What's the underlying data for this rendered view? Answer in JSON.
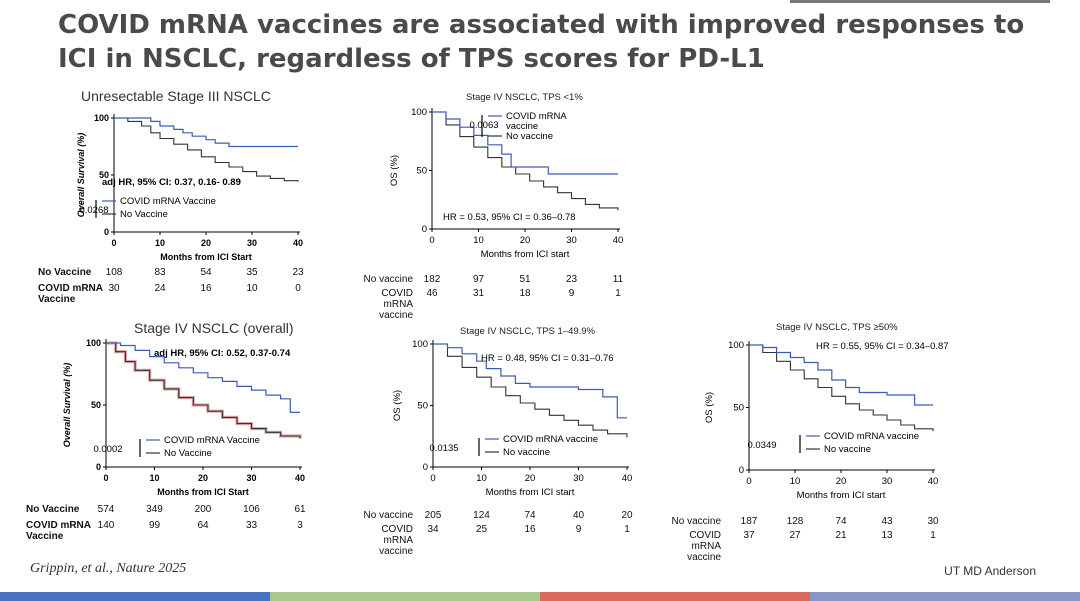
{
  "slide": {
    "title": "COVID mRNA vaccines are associated with improved responses to ICI in NSCLC, regardless of TPS scores for PD-L1",
    "citation": "Grippin, et al., Nature 2025",
    "organization": "UT MD Anderson"
  },
  "colors": {
    "vaccine": "#3b5bb8",
    "no_vaccine": "#333333",
    "ci_band": "#c86060",
    "bar": [
      "#4a72c2",
      "#a8c890",
      "#d96a5a",
      "#8a96c8"
    ]
  },
  "chart_data": [
    {
      "type": "line",
      "title": "Unresectable Stage III NSCLC",
      "xlabel": "Months from ICI Start",
      "ylabel": "Overall Survival (%)",
      "xlim": [
        0,
        40
      ],
      "ylim": [
        0,
        100
      ],
      "xticks": [
        0,
        10,
        20,
        30,
        40
      ],
      "yticks": [
        0,
        50,
        100
      ],
      "annotation": "adj HR, 95% CI: 0.37, 0.16- 0.89",
      "p_value": "0.0268",
      "series": [
        {
          "name": "COVID mRNA Vaccine",
          "x": [
            0,
            5,
            8,
            10,
            13,
            15,
            17,
            20,
            22,
            25,
            28,
            30,
            35,
            38,
            40
          ],
          "y": [
            100,
            100,
            97,
            93,
            90,
            87,
            84,
            81,
            78,
            75,
            75,
            75,
            75,
            75,
            75
          ]
        },
        {
          "name": "No Vaccine",
          "x": [
            0,
            3,
            6,
            8,
            10,
            13,
            16,
            19,
            22,
            25,
            28,
            31,
            34,
            37,
            40
          ],
          "y": [
            100,
            97,
            93,
            87,
            82,
            77,
            72,
            66,
            61,
            57,
            53,
            49,
            47,
            45,
            44
          ]
        }
      ],
      "risk_table": {
        "x": [
          0,
          10,
          20,
          30,
          40
        ],
        "rows": [
          {
            "label": "No Vaccine",
            "values": [
              "108",
              "83",
              "54",
              "35",
              "23"
            ]
          },
          {
            "label": "COVID mRNA Vaccine",
            "values": [
              "30",
              "24",
              "16",
              "10",
              "0"
            ]
          }
        ]
      }
    },
    {
      "type": "line",
      "title": "Stage IV NSCLC, TPS <1%",
      "xlabel": "Months from ICI start",
      "ylabel": "OS (%)",
      "xlim": [
        0,
        40
      ],
      "ylim": [
        0,
        100
      ],
      "xticks": [
        0,
        10,
        20,
        30,
        40
      ],
      "yticks": [
        0,
        50,
        100
      ],
      "annotation": "HR = 0.53, 95% CI = 0.36–0.78",
      "p_value": "0.0063",
      "series": [
        {
          "name": "COVID mRNA vaccine",
          "x": [
            0,
            3,
            6,
            9,
            12,
            15,
            17,
            20,
            25,
            30,
            35,
            40
          ],
          "y": [
            100,
            94,
            87,
            80,
            72,
            64,
            53,
            53,
            47,
            47,
            47,
            47
          ]
        },
        {
          "name": "No vaccine",
          "x": [
            0,
            3,
            6,
            9,
            12,
            15,
            18,
            21,
            24,
            27,
            30,
            33,
            36,
            40
          ],
          "y": [
            100,
            89,
            79,
            70,
            61,
            53,
            47,
            41,
            36,
            31,
            26,
            21,
            18,
            16
          ]
        }
      ],
      "risk_table": {
        "x": [
          0,
          10,
          20,
          30,
          40
        ],
        "rows": [
          {
            "label": "No vaccine",
            "values": [
              "182",
              "97",
              "51",
              "23",
              "11"
            ]
          },
          {
            "label": "COVID mRNA vaccine",
            "values": [
              "46",
              "31",
              "18",
              "9",
              "1"
            ]
          }
        ]
      }
    },
    {
      "type": "line",
      "title": "Stage IV NSCLC (overall)",
      "xlabel": "Months from ICI Start",
      "ylabel": "Overall Survival (%)",
      "xlim": [
        0,
        40
      ],
      "ylim": [
        0,
        100
      ],
      "xticks": [
        0,
        10,
        20,
        30,
        40
      ],
      "yticks": [
        0,
        50,
        100
      ],
      "annotation": "adj HR, 95% CI: 0.52, 0.37-0.74",
      "p_value": "0.0002",
      "series": [
        {
          "name": "COVID mRNA Vaccine",
          "x": [
            0,
            3,
            6,
            9,
            12,
            15,
            18,
            21,
            24,
            27,
            30,
            33,
            36,
            38,
            40
          ],
          "y": [
            100,
            98,
            94,
            89,
            84,
            80,
            76,
            72,
            69,
            65,
            62,
            58,
            55,
            44,
            44
          ]
        },
        {
          "name": "No Vaccine",
          "x": [
            0,
            2,
            4,
            6,
            9,
            12,
            15,
            18,
            21,
            24,
            27,
            30,
            33,
            36,
            40
          ],
          "y": [
            100,
            93,
            85,
            78,
            70,
            63,
            56,
            50,
            45,
            40,
            35,
            31,
            28,
            25,
            23
          ]
        }
      ],
      "risk_table": {
        "x": [
          0,
          10,
          20,
          30,
          40
        ],
        "rows": [
          {
            "label": "No Vaccine",
            "values": [
              "574",
              "349",
              "200",
              "106",
              "61"
            ]
          },
          {
            "label": "COVID mRNA Vaccine",
            "values": [
              "140",
              "99",
              "64",
              "33",
              "3"
            ]
          }
        ]
      }
    },
    {
      "type": "line",
      "title": "Stage IV NSCLC, TPS 1–49.9%",
      "xlabel": "Months from ICI start",
      "ylabel": "OS (%)",
      "xlim": [
        0,
        40
      ],
      "ylim": [
        0,
        100
      ],
      "xticks": [
        0,
        10,
        20,
        30,
        40
      ],
      "yticks": [
        0,
        50,
        100
      ],
      "annotation": "HR = 0.48, 95% CI = 0.31–0.76",
      "p_value": "0.0135",
      "series": [
        {
          "name": "COVID mRNA vaccine",
          "x": [
            0,
            3,
            6,
            9,
            11,
            14,
            17,
            20,
            25,
            30,
            35,
            37,
            38,
            40
          ],
          "y": [
            100,
            97,
            92,
            86,
            80,
            74,
            68,
            65,
            65,
            63,
            57,
            57,
            40,
            40
          ]
        },
        {
          "name": "No vaccine",
          "x": [
            0,
            3,
            6,
            9,
            12,
            15,
            18,
            21,
            24,
            27,
            30,
            33,
            36,
            40
          ],
          "y": [
            100,
            90,
            81,
            73,
            65,
            58,
            52,
            47,
            42,
            38,
            34,
            30,
            27,
            24
          ]
        }
      ],
      "risk_table": {
        "x": [
          0,
          10,
          20,
          30,
          40
        ],
        "rows": [
          {
            "label": "No vaccine",
            "values": [
              "205",
              "124",
              "74",
              "40",
              "20"
            ]
          },
          {
            "label": "COVID mRNA vaccine",
            "values": [
              "34",
              "25",
              "16",
              "9",
              "1"
            ]
          }
        ]
      }
    },
    {
      "type": "line",
      "title": "Stage IV NSCLC, TPS ≥50%",
      "xlabel": "Months from ICI start",
      "ylabel": "OS (%)",
      "xlim": [
        0,
        40
      ],
      "ylim": [
        0,
        100
      ],
      "xticks": [
        0,
        10,
        20,
        30,
        40
      ],
      "yticks": [
        0,
        50,
        100
      ],
      "annotation": "HR = 0.55, 95% CI = 0.34–0.87",
      "p_value": "0.0349",
      "series": [
        {
          "name": "COVID mRNA vaccine",
          "x": [
            0,
            3,
            6,
            9,
            12,
            15,
            18,
            21,
            24,
            27,
            30,
            33,
            36,
            40
          ],
          "y": [
            100,
            98,
            94,
            90,
            86,
            80,
            72,
            66,
            62,
            62,
            60,
            60,
            52,
            52
          ]
        },
        {
          "name": "No vaccine",
          "x": [
            0,
            3,
            6,
            9,
            12,
            15,
            18,
            21,
            24,
            27,
            30,
            33,
            36,
            40
          ],
          "y": [
            100,
            94,
            87,
            80,
            73,
            66,
            59,
            53,
            48,
            44,
            40,
            36,
            33,
            31
          ]
        }
      ],
      "risk_table": {
        "x": [
          0,
          10,
          20,
          30,
          40
        ],
        "rows": [
          {
            "label": "No vaccine",
            "values": [
              "187",
              "128",
              "74",
              "43",
              "30"
            ]
          },
          {
            "label": "COVID mRNA vaccine",
            "values": [
              "37",
              "27",
              "21",
              "13",
              "1"
            ]
          }
        ]
      }
    }
  ]
}
